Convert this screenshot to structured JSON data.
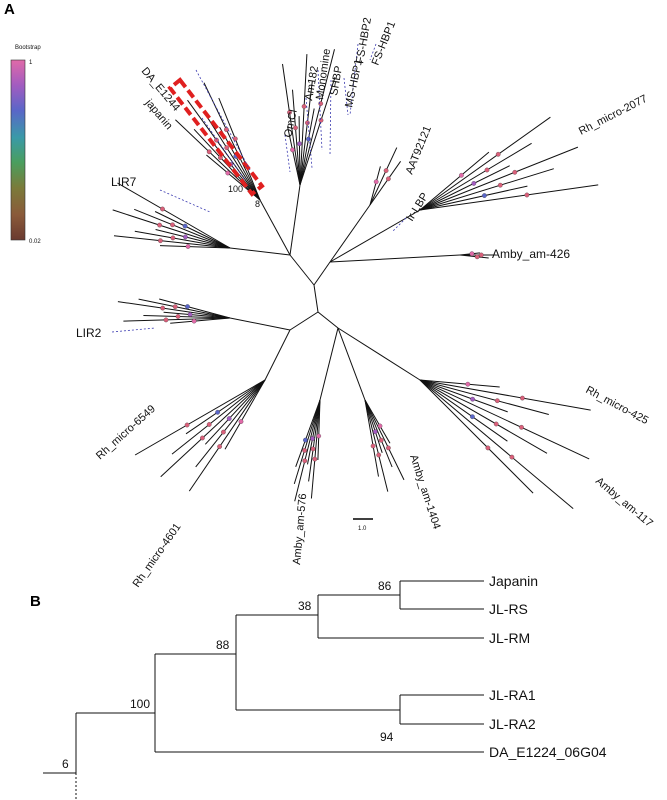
{
  "panel_a": {
    "letter": "A",
    "legend": {
      "title": "Bootstrap",
      "max_label": "1",
      "min_label": "0.02",
      "gradient_colors": [
        "#e06aa8",
        "#a25cc0",
        "#5a66c8",
        "#3a9aa8",
        "#4a9e5e",
        "#7b7b3a",
        "#8a5a3a",
        "#6a3a30"
      ]
    },
    "scale_bar_label": "1.0",
    "highlight_color": "#e02020",
    "node_color": "#d9607a",
    "pointer_color": "#3a3ab0",
    "inner_node_labels": [
      "100",
      "8"
    ],
    "taxa": [
      "DA_E1244",
      "japanin",
      "LIR7",
      "OmCl",
      "Am182",
      "Monomine",
      "SHBP",
      "MS-HBP1",
      "FS-HBP2",
      "FS-HBP1",
      "AAT92121",
      "Ir-LBP",
      "Rh_micro-2077",
      "Amby_am-426",
      "LIR2",
      "Rh_micro-6549",
      "Rh_micro-4601",
      "Amby_am-576",
      "Amby_am-1404",
      "Rh_micro-425",
      "Amby_am-117"
    ]
  },
  "panel_b": {
    "letter": "B",
    "leaves": [
      "Japanin",
      "JL-RS",
      "JL-RM",
      "JL-RA1",
      "JL-RA2",
      "DA_E1224_06G04"
    ],
    "bootstraps": [
      "86",
      "38",
      "88",
      "94",
      "100",
      "6"
    ]
  }
}
